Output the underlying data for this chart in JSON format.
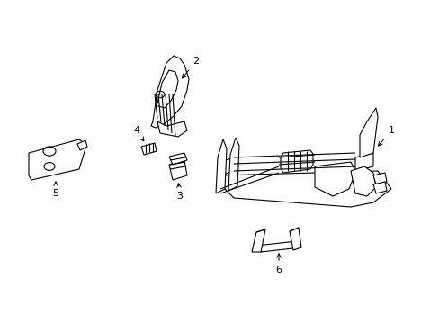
{
  "background_color": "#ffffff",
  "line_color": "#000000",
  "line_width": 0.8,
  "label_color": "#000000",
  "label_fontsize": 8,
  "figsize": [
    4.89,
    3.6
  ],
  "dpi": 100
}
